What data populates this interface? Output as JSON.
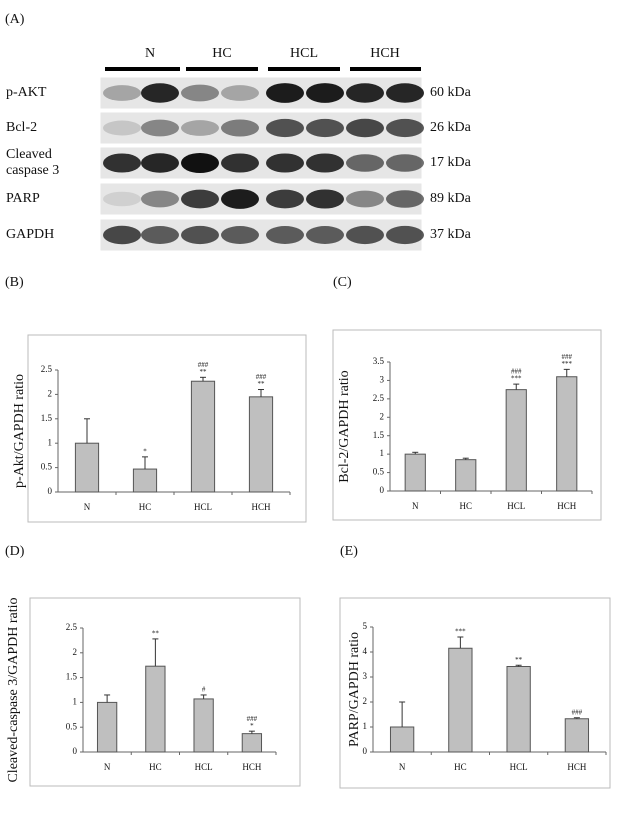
{
  "panel_labels": [
    "(A)",
    "(B)",
    "(C)",
    "(D)",
    "(E)"
  ],
  "blot": {
    "groups": [
      "N",
      "HC",
      "HCL",
      "HCH"
    ],
    "proteins": [
      "p-AKT",
      "Bcl-2",
      "Cleaved\ncaspase 3",
      "PARP",
      "GAPDH"
    ],
    "sizes": [
      "60 kDa",
      "26 kDa",
      "17 kDa",
      "89 kDa",
      "37 kDa"
    ]
  },
  "chart_data": [
    {
      "type": "bar",
      "ylabel": "p-Akt/GAPDH ratio",
      "categories": [
        "N",
        "HC",
        "HCL",
        "HCH"
      ],
      "values": [
        1.0,
        0.47,
        2.27,
        1.95
      ],
      "errors": [
        0.5,
        0.25,
        0.08,
        0.15
      ],
      "annotations": [
        null,
        [
          "*"
        ],
        [
          "###",
          "**"
        ],
        [
          "###",
          "**"
        ]
      ],
      "color": "#bfbfbf",
      "ylim": [
        0,
        2.5
      ],
      "yticks": [
        0,
        0.5,
        1,
        1.5,
        2,
        2.5
      ]
    },
    {
      "type": "bar",
      "ylabel": "Bcl-2/GAPDH ratio",
      "categories": [
        "N",
        "HC",
        "HCL",
        "HCH"
      ],
      "values": [
        1.0,
        0.85,
        2.75,
        3.1
      ],
      "errors": [
        0.05,
        0.04,
        0.15,
        0.2
      ],
      "annotations": [
        null,
        null,
        [
          "###",
          "***"
        ],
        [
          "###",
          "***"
        ]
      ],
      "color": "#bfbfbf",
      "ylim": [
        0,
        3.5
      ],
      "yticks": [
        0,
        0.5,
        1,
        1.5,
        2,
        2.5,
        3,
        3.5
      ]
    },
    {
      "type": "bar",
      "ylabel": "Cleaved-caspase 3/GAPDH ratio",
      "categories": [
        "N",
        "HC",
        "HCL",
        "HCH"
      ],
      "values": [
        1.0,
        1.73,
        1.07,
        0.37
      ],
      "errors": [
        0.15,
        0.55,
        0.08,
        0.05
      ],
      "annotations": [
        null,
        [
          "**"
        ],
        [
          "#"
        ],
        [
          "###",
          "*"
        ]
      ],
      "color": "#bfbfbf",
      "ylim": [
        0,
        2.5
      ],
      "yticks": [
        0,
        0.5,
        1,
        1.5,
        2,
        2.5
      ]
    },
    {
      "type": "bar",
      "ylabel": "PARP/GAPDH ratio",
      "categories": [
        "N",
        "HC",
        "HCL",
        "HCH"
      ],
      "values": [
        1.0,
        4.15,
        3.42,
        1.33
      ],
      "errors": [
        1.0,
        0.45,
        0.05,
        0.04
      ],
      "annotations": [
        null,
        [
          "***"
        ],
        [
          "**"
        ],
        [
          "###"
        ]
      ],
      "color": "#bfbfbf",
      "ylim": [
        0,
        5
      ],
      "yticks": [
        0,
        1,
        2,
        3,
        4,
        5
      ]
    }
  ]
}
